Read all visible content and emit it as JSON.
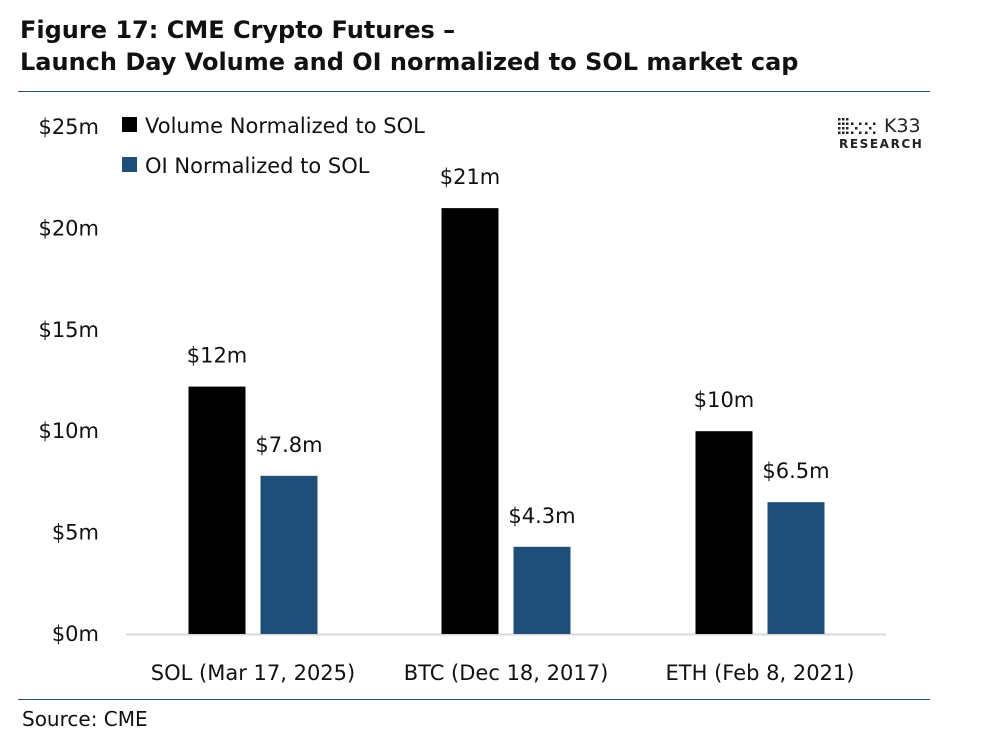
{
  "title": {
    "line1": "Figure 17: CME Crypto Futures –",
    "line2": "Launch Day Volume and OI normalized to SOL market cap"
  },
  "source": "Source: CME",
  "logo": {
    "name": "K33",
    "tagline": "RESEARCH"
  },
  "chart_data": {
    "type": "bar",
    "categories": [
      "SOL (Mar 17, 2025)",
      "BTC (Dec 18, 2017)",
      "ETH (Feb 8, 2021)"
    ],
    "series": [
      {
        "name": "Volume Normalized to SOL",
        "values": [
          12.2,
          21.0,
          10.0
        ],
        "labels": [
          "$12m",
          "$21m",
          "$10m"
        ],
        "color": "#000000"
      },
      {
        "name": "OI Normalized to SOL",
        "values": [
          7.8,
          4.3,
          6.5
        ],
        "labels": [
          "$7.8m",
          "$4.3m",
          "$6.5m"
        ],
        "color": "#1f4e79"
      }
    ],
    "ylim": [
      0,
      25
    ],
    "yticks": [
      0,
      5,
      10,
      15,
      20,
      25
    ],
    "ytick_labels": [
      "$0m",
      "$5m",
      "$10m",
      "$15m",
      "$20m",
      "$25m"
    ],
    "grid": false,
    "legend_position": "top-left"
  }
}
